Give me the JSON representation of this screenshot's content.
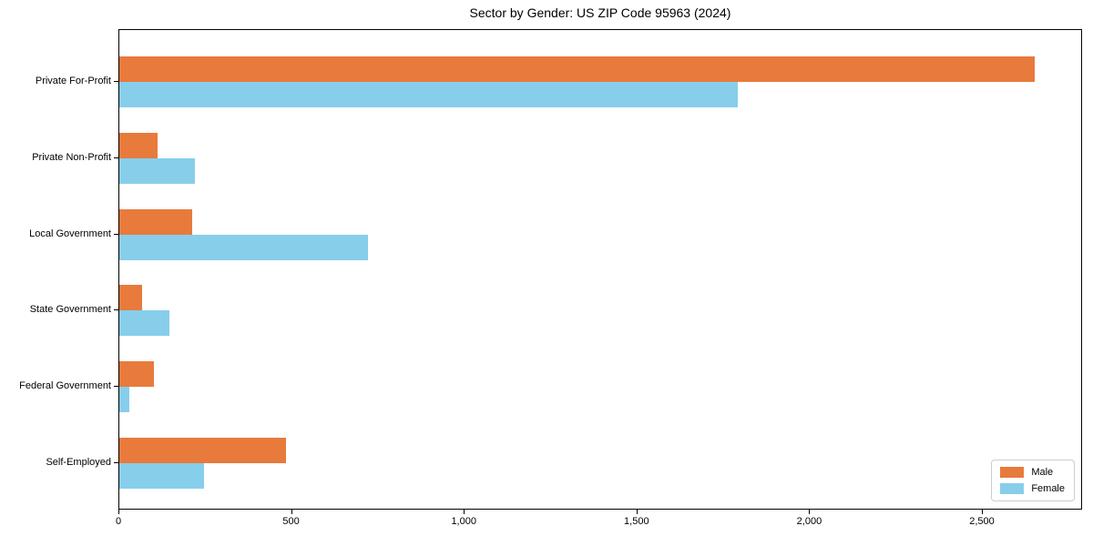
{
  "chart_data": {
    "type": "bar",
    "orientation": "horizontal",
    "title": "Sector by Gender: US ZIP Code 95963 (2024)",
    "categories": [
      "Private For-Profit",
      "Private Non-Profit",
      "Local Government",
      "State Government",
      "Federal Government",
      "Self-Employed"
    ],
    "series": [
      {
        "name": "Male",
        "color": "#e87a3c",
        "values": [
          2650,
          110,
          210,
          65,
          100,
          483
        ]
      },
      {
        "name": "Female",
        "color": "#87ceeb",
        "values": [
          1790,
          220,
          720,
          145,
          28,
          245
        ]
      }
    ],
    "xlabel": "",
    "ylabel": "",
    "xlim": [
      0,
      2790
    ],
    "x_ticks": [
      0,
      500,
      1000,
      1500,
      2000,
      2500
    ],
    "x_tick_labels": [
      "0",
      "500",
      "1,000",
      "1,500",
      "2,000",
      "2,500"
    ],
    "grid": false,
    "legend_position": "lower right"
  }
}
